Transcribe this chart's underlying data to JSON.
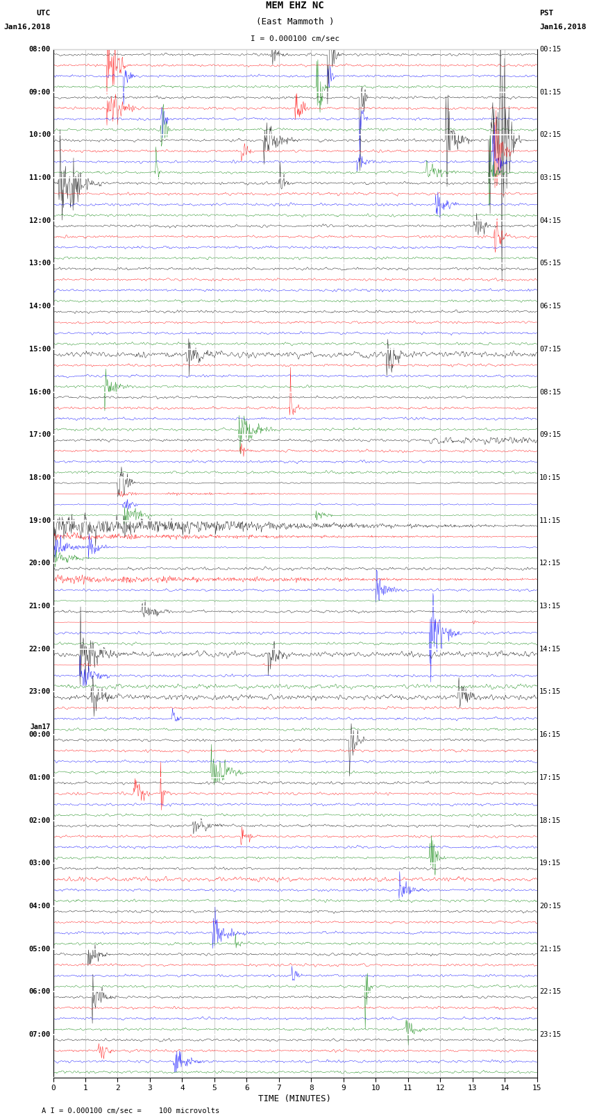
{
  "title_line1": "MEM EHZ NC",
  "title_line2": "(East Mammoth )",
  "scale_label": "I = 0.000100 cm/sec",
  "bottom_label": "A I = 0.000100 cm/sec =    100 microvolts",
  "xlabel": "TIME (MINUTES)",
  "left_header1": "UTC",
  "left_header2": "Jan16,2018",
  "right_header1": "PST",
  "right_header2": "Jan16,2018",
  "colors": [
    "black",
    "red",
    "blue",
    "green"
  ],
  "bg_color": "#ffffff",
  "grid_color": "#aaaaaa",
  "n_hours": 24,
  "traces_per_hour": 4,
  "minutes_per_trace": 15,
  "noise_base": 0.1,
  "utc_hour_labels": [
    "08:00",
    "09:00",
    "10:00",
    "11:00",
    "12:00",
    "13:00",
    "14:00",
    "15:00",
    "16:00",
    "17:00",
    "18:00",
    "19:00",
    "20:00",
    "21:00",
    "22:00",
    "23:00",
    "00:00",
    "01:00",
    "02:00",
    "03:00",
    "04:00",
    "05:00",
    "06:00",
    "07:00"
  ],
  "jan17_index": 16,
  "pst_hour_labels": [
    "00:15",
    "01:15",
    "02:15",
    "03:15",
    "04:15",
    "05:15",
    "06:15",
    "07:15",
    "08:15",
    "09:15",
    "10:15",
    "11:15",
    "12:15",
    "13:15",
    "14:15",
    "15:15",
    "16:15",
    "17:15",
    "18:15",
    "19:15",
    "20:15",
    "21:15",
    "22:15",
    "23:15"
  ]
}
